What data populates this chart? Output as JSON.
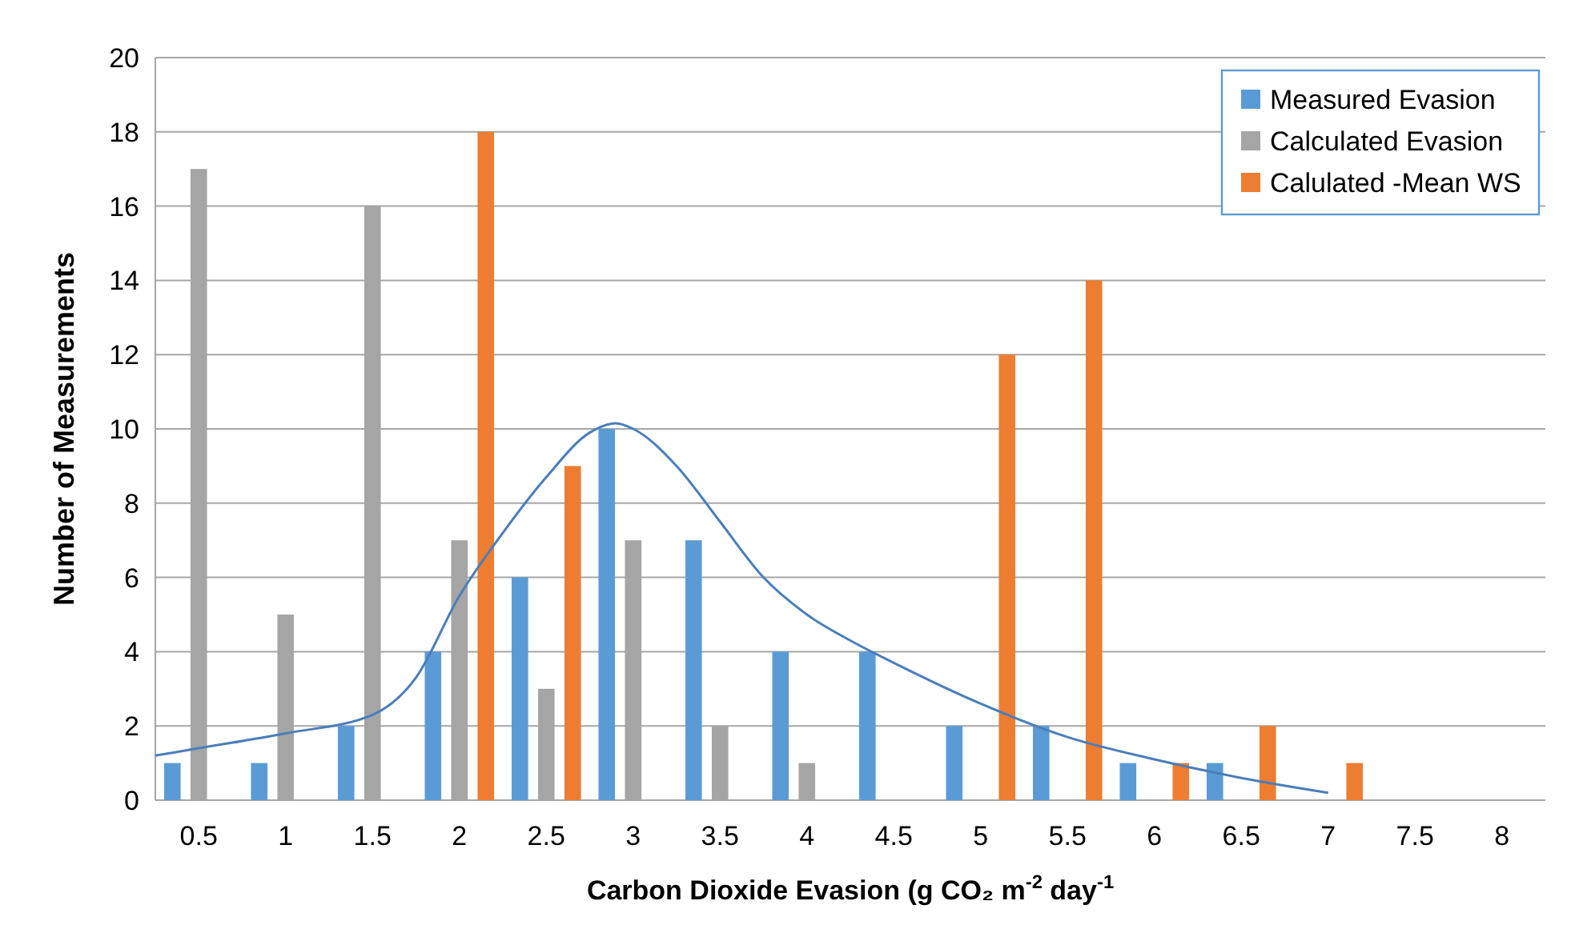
{
  "chart_data": {
    "type": "bar",
    "xlabel": "Carbon Dioxide Evasion  (g CO₂ m$^{-2}$ day$^{-1}$",
    "ylabel": "Number of Measurements",
    "x": [
      0.5,
      1,
      1.5,
      2,
      2.5,
      3,
      3.5,
      4,
      4.5,
      5,
      5.5,
      6,
      6.5,
      7,
      7.5,
      8
    ],
    "xlim": [
      0.25,
      8.25
    ],
    "xticks": [
      0.5,
      1,
      1.5,
      2,
      2.5,
      3,
      3.5,
      4,
      4.5,
      5,
      5.5,
      6,
      6.5,
      7,
      7.5,
      8
    ],
    "ylim": [
      0,
      20
    ],
    "yticks": [
      0,
      2,
      4,
      6,
      8,
      10,
      12,
      14,
      16,
      18,
      20
    ],
    "grid": "y",
    "legend": "top right",
    "series": [
      {
        "name": "Measured Evasion",
        "color": "#5b9bd5",
        "values": [
          1,
          1,
          2,
          4,
          6,
          10,
          7,
          4,
          4,
          2,
          2,
          1,
          1,
          0,
          0,
          0
        ]
      },
      {
        "name": "Calculated Evasion",
        "color": "#a5a5a5",
        "values": [
          17,
          5,
          16,
          7,
          3,
          7,
          2,
          1,
          0,
          0,
          0,
          0,
          0,
          0,
          0,
          0
        ]
      },
      {
        "name": "Calulated -Mean WS",
        "color": "#ed7d31",
        "values": [
          0,
          0,
          0,
          18,
          9,
          0,
          0,
          0,
          0,
          12,
          14,
          1,
          2,
          1,
          0,
          0
        ]
      },
      {
        "type": "line",
        "color": "#4a7ebb",
        "x": [
          0.25,
          0.5,
          1,
          1.5,
          1.75,
          2,
          2.25,
          2.5,
          2.75,
          2.9,
          3,
          3.25,
          3.5,
          3.75,
          4,
          4.25,
          4.5,
          5,
          5.5,
          6,
          6.5,
          7
        ],
        "values": [
          1.2,
          1.4,
          1.8,
          2.3,
          3.3,
          5.5,
          7.2,
          8.7,
          9.9,
          10.15,
          10,
          9,
          7.5,
          6,
          5,
          4.3,
          3.7,
          2.6,
          1.7,
          1.1,
          0.6,
          0.2
        ]
      }
    ]
  }
}
